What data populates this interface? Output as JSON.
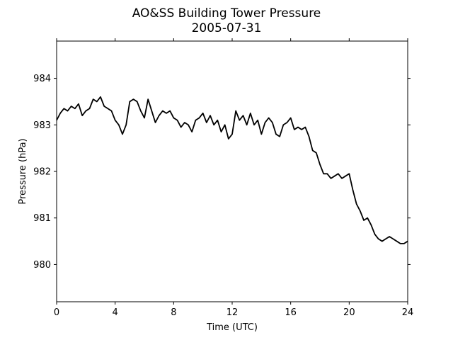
{
  "chart_data": {
    "type": "line",
    "title": "AO&SS Building Tower Pressure",
    "subtitle": "2005-07-31",
    "xlabel": "Time (UTC)",
    "ylabel": "Pressure (hPa)",
    "xlim": [
      0,
      24
    ],
    "ylim": [
      979.2,
      984.8
    ],
    "x_ticks": [
      0,
      4,
      8,
      12,
      16,
      20,
      24
    ],
    "y_ticks": [
      980,
      981,
      982,
      983,
      984
    ],
    "grid": false,
    "legend": "none",
    "line_color": "#000000",
    "series": [
      {
        "x": [
          0.0,
          0.25,
          0.5,
          0.75,
          1.0,
          1.25,
          1.5,
          1.75,
          2.0,
          2.25,
          2.5,
          2.75,
          3.0,
          3.25,
          3.5,
          3.75,
          4.0,
          4.25,
          4.5,
          4.75,
          5.0,
          5.25,
          5.5,
          5.75,
          6.0,
          6.25,
          6.5,
          6.75,
          7.0,
          7.25,
          7.5,
          7.75,
          8.0,
          8.25,
          8.5,
          8.75,
          9.0,
          9.25,
          9.5,
          9.75,
          10.0,
          10.25,
          10.5,
          10.75,
          11.0,
          11.25,
          11.5,
          11.75,
          12.0,
          12.25,
          12.5,
          12.75,
          13.0,
          13.25,
          13.5,
          13.75,
          14.0,
          14.25,
          14.5,
          14.75,
          15.0,
          15.25,
          15.5,
          15.75,
          16.0,
          16.25,
          16.5,
          16.75,
          17.0,
          17.25,
          17.5,
          17.75,
          18.0,
          18.25,
          18.5,
          18.75,
          19.0,
          19.25,
          19.5,
          19.75,
          20.0,
          20.25,
          20.5,
          20.75,
          21.0,
          21.25,
          21.5,
          21.75,
          22.0,
          22.25,
          22.5,
          22.75,
          23.0,
          23.25,
          23.5,
          23.75,
          24.0
        ],
        "values": [
          983.1,
          983.25,
          983.35,
          983.3,
          983.4,
          983.35,
          983.45,
          983.2,
          983.3,
          983.35,
          983.55,
          983.5,
          983.6,
          983.4,
          983.35,
          983.3,
          983.1,
          983.0,
          982.8,
          983.0,
          983.5,
          983.55,
          983.5,
          983.3,
          983.15,
          983.55,
          983.3,
          983.05,
          983.2,
          983.3,
          983.25,
          983.3,
          983.15,
          983.1,
          982.95,
          983.05,
          983.0,
          982.85,
          983.1,
          983.15,
          983.25,
          983.05,
          983.2,
          983.0,
          983.1,
          982.85,
          983.0,
          982.7,
          982.8,
          983.3,
          983.1,
          983.2,
          983.0,
          983.25,
          983.0,
          983.1,
          982.8,
          983.05,
          983.15,
          983.05,
          982.8,
          982.75,
          983.0,
          983.05,
          983.15,
          982.9,
          982.95,
          982.9,
          982.95,
          982.75,
          982.45,
          982.4,
          982.15,
          981.95,
          981.95,
          981.85,
          981.9,
          981.95,
          981.85,
          981.9,
          981.95,
          981.6,
          981.3,
          981.15,
          980.95,
          981.0,
          980.85,
          980.65,
          980.55,
          980.5,
          980.55,
          980.6,
          980.55,
          980.5,
          980.45,
          980.45,
          980.5
        ]
      }
    ]
  }
}
